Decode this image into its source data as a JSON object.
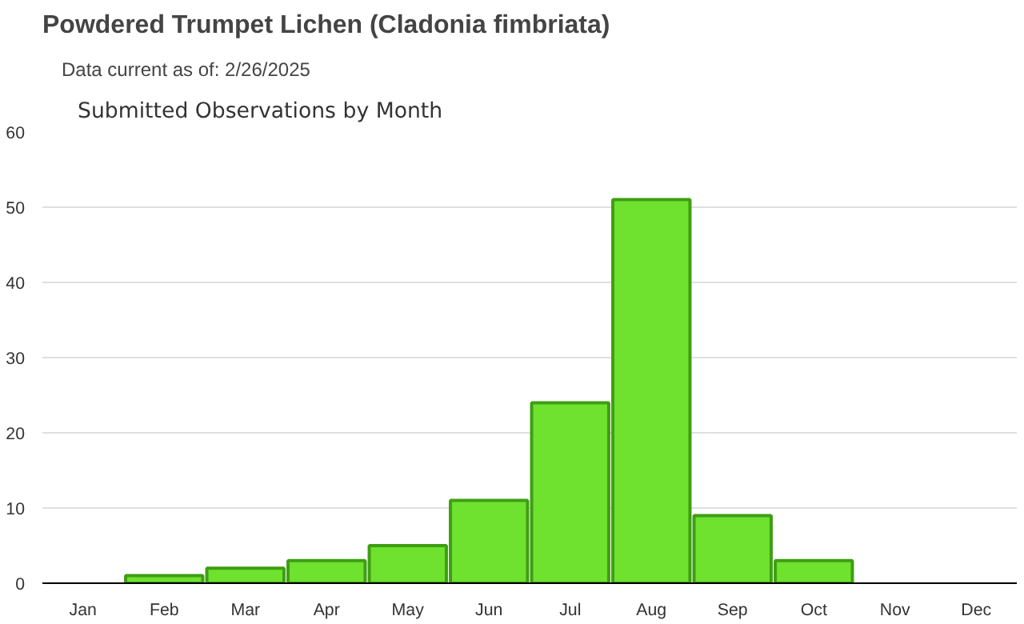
{
  "chart_data": {
    "type": "bar",
    "title": "Powdered Trumpet Lichen   (Cladonia fimbriata)",
    "subtitle": "Data current as of: 2/26/2025",
    "annotations": [
      "Submitted Observations by Month"
    ],
    "categories": [
      "Jan",
      "Feb",
      "Mar",
      "Apr",
      "May",
      "Jun",
      "Jul",
      "Aug",
      "Sep",
      "Oct",
      "Nov",
      "Dec"
    ],
    "values": [
      0,
      1,
      2,
      3,
      5,
      11,
      24,
      51,
      9,
      3,
      0,
      0
    ],
    "color": "#6ee22e",
    "ylim": [
      0,
      60
    ],
    "yticks": [
      0,
      10,
      20,
      30,
      40,
      50,
      60
    ],
    "grid": "y"
  }
}
